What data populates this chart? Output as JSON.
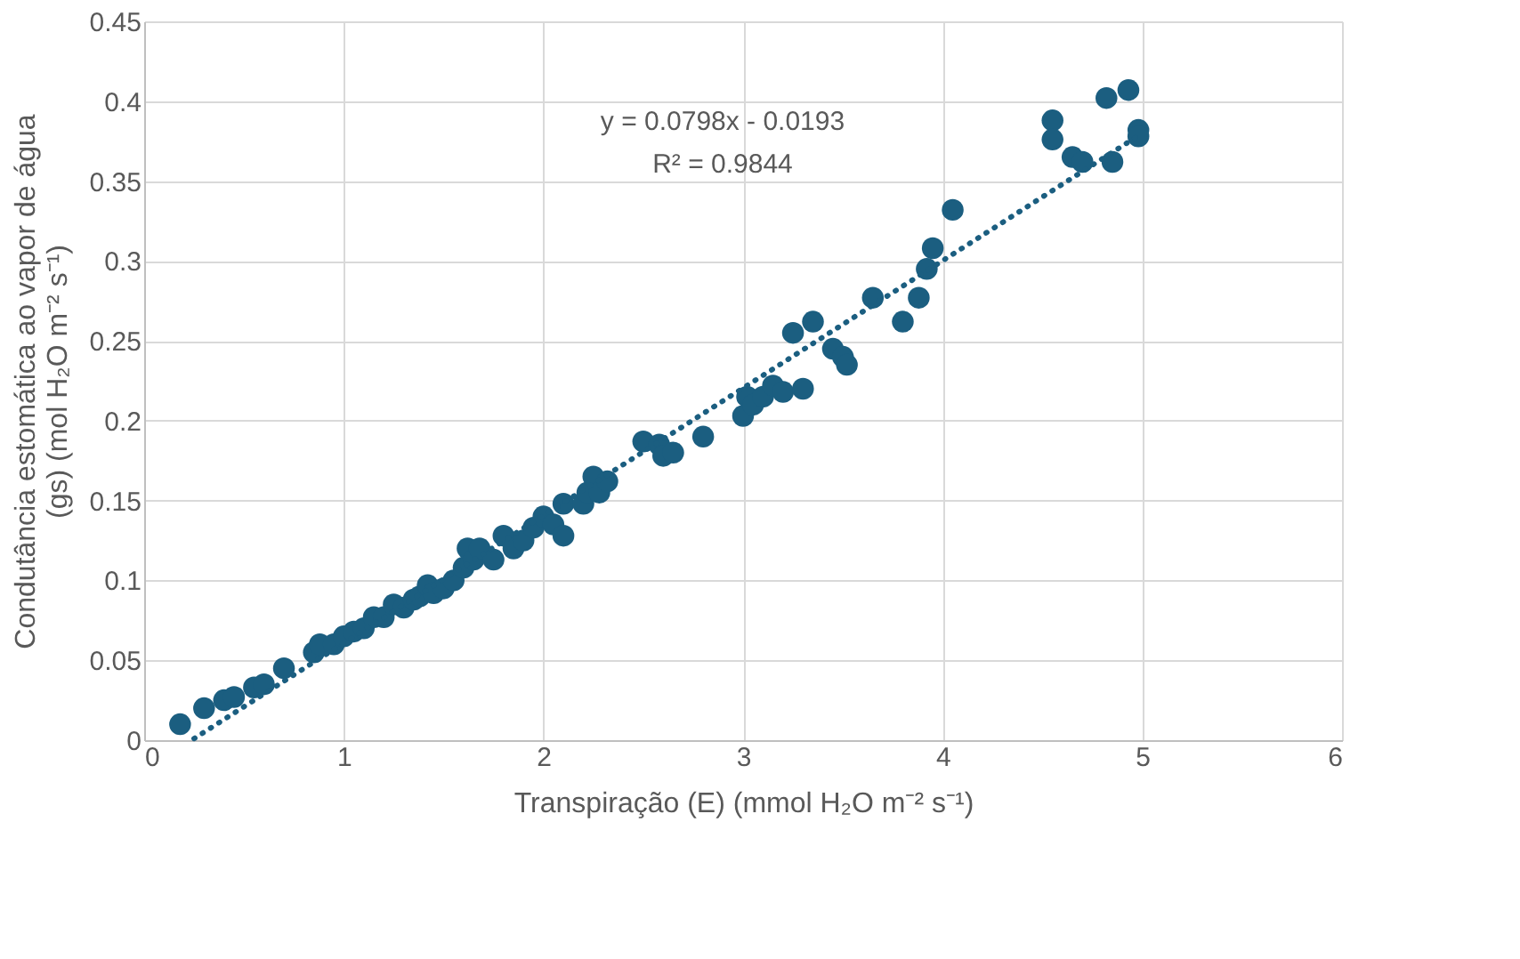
{
  "chart_data": {
    "type": "scatter",
    "xlabel": "Transpiração (E) (mmol H₂O m⁻² s⁻¹)",
    "ylabel": "Condutância estomática ao vapor de água (gs) (mol H₂O m⁻² s⁻¹)",
    "xlim": [
      0,
      6
    ],
    "xticks": [
      0,
      1,
      2,
      3,
      4,
      5,
      6
    ],
    "ylim": [
      0,
      0.45
    ],
    "yticks": [
      0,
      0.05,
      0.1,
      0.15,
      0.2,
      0.25,
      0.3,
      0.35,
      0.4,
      0.45
    ],
    "grid": true,
    "marker": "circle",
    "annotations": [
      "y = 0.0798x - 0.0193",
      "R² = 0.9844"
    ],
    "series": [
      {
        "color": "#1b5e80",
        "x": [
          0.18,
          0.3,
          0.4,
          0.45,
          0.55,
          0.6,
          0.7,
          0.85,
          0.88,
          0.95,
          1.0,
          1.05,
          1.1,
          1.15,
          1.2,
          1.25,
          1.3,
          1.35,
          1.38,
          1.42,
          1.45,
          1.5,
          1.55,
          1.6,
          1.62,
          1.65,
          1.68,
          1.75,
          1.8,
          1.85,
          1.9,
          1.95,
          2.0,
          2.05,
          2.1,
          2.1,
          2.2,
          2.22,
          2.25,
          2.28,
          2.32,
          2.5,
          2.58,
          2.6,
          2.65,
          2.8,
          3.0,
          3.02,
          3.05,
          3.1,
          3.15,
          3.2,
          3.25,
          3.3,
          3.35,
          3.45,
          3.5,
          3.52,
          3.65,
          3.8,
          3.88,
          3.92,
          3.95,
          4.05,
          4.55,
          4.55,
          4.65,
          4.7,
          4.82,
          4.85,
          4.93,
          4.98,
          4.98
        ],
        "values": [
          0.01,
          0.02,
          0.025,
          0.027,
          0.033,
          0.035,
          0.045,
          0.055,
          0.06,
          0.06,
          0.065,
          0.068,
          0.07,
          0.077,
          0.077,
          0.085,
          0.083,
          0.088,
          0.09,
          0.097,
          0.092,
          0.095,
          0.1,
          0.108,
          0.12,
          0.113,
          0.12,
          0.113,
          0.128,
          0.12,
          0.125,
          0.133,
          0.14,
          0.135,
          0.128,
          0.148,
          0.148,
          0.155,
          0.165,
          0.155,
          0.162,
          0.187,
          0.185,
          0.178,
          0.18,
          0.19,
          0.203,
          0.215,
          0.21,
          0.215,
          0.222,
          0.218,
          0.255,
          0.22,
          0.262,
          0.245,
          0.24,
          0.235,
          0.277,
          0.262,
          0.277,
          0.295,
          0.308,
          0.332,
          0.388,
          0.376,
          0.365,
          0.362,
          0.402,
          0.362,
          0.407,
          0.382,
          0.378
        ]
      },
      {
        "type": "line",
        "color": "#1b5e80",
        "line_style": "dotted",
        "marker": "none",
        "x": [
          0.25,
          5.0
        ],
        "values": [
          0.001,
          0.38
        ]
      }
    ]
  }
}
